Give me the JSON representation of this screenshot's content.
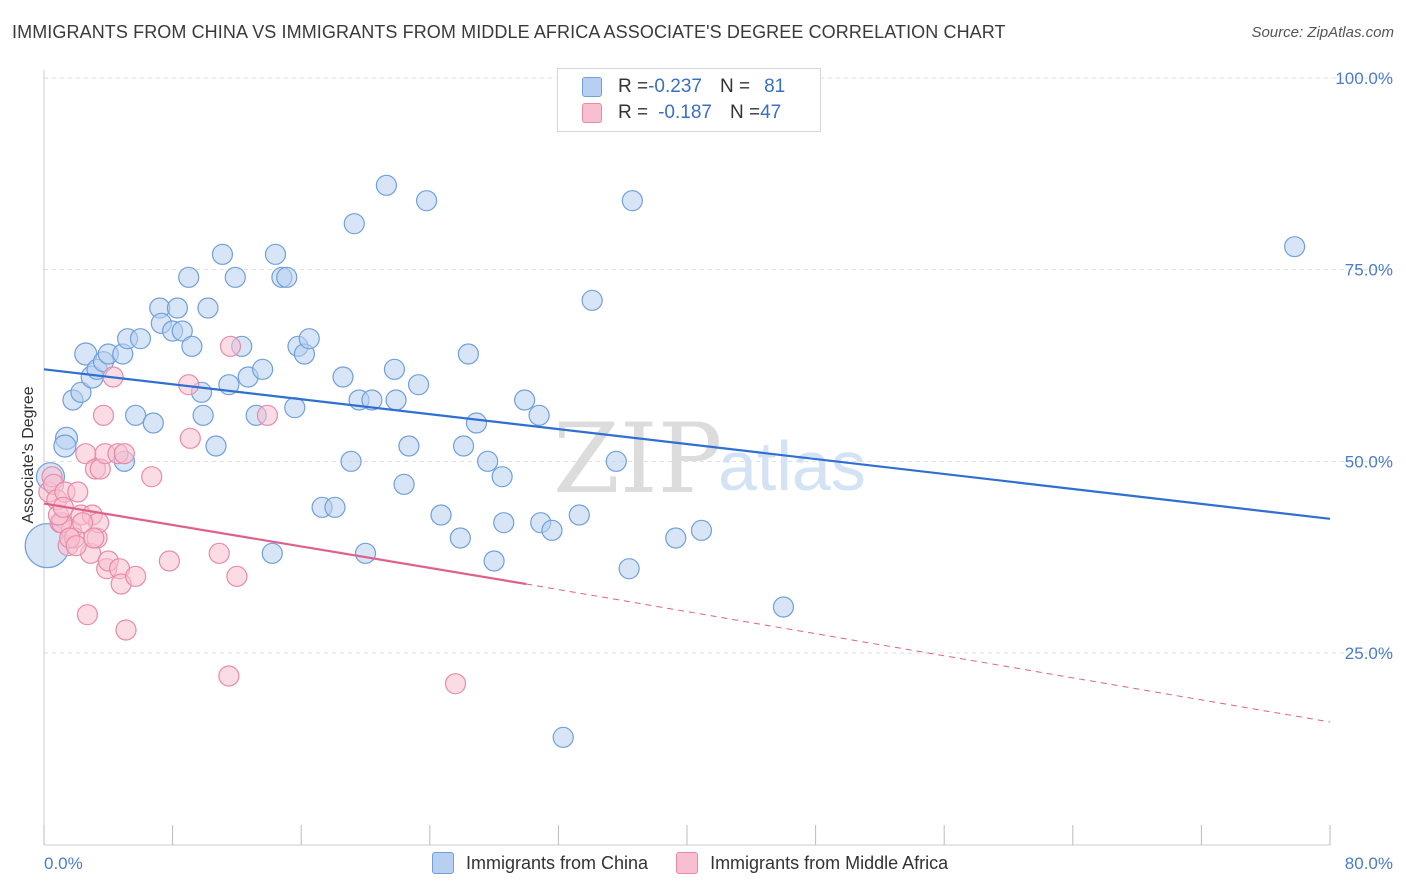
{
  "title": "IMMIGRANTS FROM CHINA VS IMMIGRANTS FROM MIDDLE AFRICA ASSOCIATE'S DEGREE CORRELATION CHART",
  "source": "Source: ZipAtlas.com",
  "watermark": {
    "zip": "ZIP",
    "atlas": "atlas"
  },
  "legend": {
    "rows": [
      {
        "r_label": "R = ",
        "r_value": "-0.237",
        "n_label": "N = ",
        "n_value": "81"
      },
      {
        "r_label": "R = ",
        "r_value": "-0.187",
        "n_label": "N = ",
        "n_value": "47"
      }
    ]
  },
  "bottom_legend": [
    "Immigrants from China",
    "Immigrants from Middle Africa"
  ],
  "colors": {
    "china_fill": "#b7cff1",
    "china_stroke": "#6f9fdc",
    "china_line": "#2f6fd1",
    "africa_fill": "#f7bfd0",
    "africa_stroke": "#e88aa8",
    "africa_line": "#e0608c",
    "grid": "#dddddd",
    "tick_label": "#4a7cc9"
  },
  "chart_data": {
    "type": "scatter",
    "xlabel": "",
    "ylabel": "Associate's Degree",
    "xlim": [
      0,
      80
    ],
    "ylim": [
      0,
      105
    ],
    "x_tick_labels": [
      "0.0%",
      "80.0%"
    ],
    "y_ticks": [
      25,
      50,
      75,
      100
    ],
    "y_tick_labels": [
      "25.0%",
      "50.0%",
      "75.0%",
      "100.0%"
    ],
    "grid": true,
    "legend_position": "top-center",
    "series": [
      {
        "name": "Immigrants from China",
        "points": [
          [
            0.2,
            39,
            22
          ],
          [
            0.4,
            48,
            14
          ],
          [
            1.4,
            53,
            11
          ],
          [
            1.3,
            52,
            11
          ],
          [
            1.8,
            58,
            10
          ],
          [
            2.3,
            59,
            10
          ],
          [
            2.6,
            64,
            11
          ],
          [
            3.0,
            61,
            11
          ],
          [
            3.3,
            62,
            10
          ],
          [
            3.7,
            63,
            10
          ],
          [
            4.0,
            64,
            10
          ],
          [
            4.9,
            64,
            10
          ],
          [
            5.2,
            66,
            10
          ],
          [
            6.0,
            66,
            10
          ],
          [
            5.7,
            56,
            10
          ],
          [
            6.8,
            55,
            10
          ],
          [
            7.2,
            70,
            10
          ],
          [
            7.3,
            68,
            10
          ],
          [
            8.0,
            67,
            10
          ],
          [
            8.3,
            70,
            10
          ],
          [
            8.6,
            67,
            10
          ],
          [
            9.0,
            74,
            10
          ],
          [
            9.2,
            65,
            10
          ],
          [
            9.8,
            59,
            10
          ],
          [
            9.9,
            56,
            10
          ],
          [
            10.2,
            70,
            10
          ],
          [
            10.7,
            52,
            10
          ],
          [
            11.1,
            77,
            10
          ],
          [
            11.5,
            60,
            10
          ],
          [
            11.9,
            74,
            10
          ],
          [
            12.3,
            65,
            10
          ],
          [
            12.7,
            61,
            10
          ],
          [
            13.2,
            56,
            10
          ],
          [
            13.6,
            62,
            10
          ],
          [
            14.2,
            38,
            10
          ],
          [
            14.4,
            77,
            10
          ],
          [
            14.8,
            74,
            10
          ],
          [
            15.1,
            74,
            10
          ],
          [
            15.6,
            57,
            10
          ],
          [
            15.8,
            65,
            10
          ],
          [
            16.2,
            64,
            10
          ],
          [
            16.5,
            66,
            10
          ],
          [
            17.3,
            44,
            10
          ],
          [
            18.1,
            44,
            10
          ],
          [
            18.6,
            61,
            10
          ],
          [
            19.1,
            50,
            10
          ],
          [
            19.3,
            81,
            10
          ],
          [
            19.6,
            58,
            10
          ],
          [
            20.0,
            38,
            10
          ],
          [
            20.4,
            58,
            10
          ],
          [
            21.3,
            86,
            10
          ],
          [
            21.8,
            62,
            10
          ],
          [
            21.9,
            58,
            10
          ],
          [
            22.4,
            47,
            10
          ],
          [
            22.7,
            52,
            10
          ],
          [
            23.3,
            60,
            10
          ],
          [
            23.8,
            84,
            10
          ],
          [
            24.7,
            43,
            10
          ],
          [
            25.9,
            40,
            10
          ],
          [
            26.1,
            52,
            10
          ],
          [
            26.4,
            64,
            10
          ],
          [
            26.9,
            55,
            10
          ],
          [
            27.6,
            50,
            10
          ],
          [
            28.0,
            37,
            10
          ],
          [
            28.5,
            48,
            10
          ],
          [
            28.6,
            42,
            10
          ],
          [
            29.9,
            58,
            10
          ],
          [
            30.8,
            56,
            10
          ],
          [
            30.9,
            42,
            10
          ],
          [
            31.6,
            41,
            10
          ],
          [
            32.3,
            14,
            10
          ],
          [
            33.3,
            43,
            10
          ],
          [
            34.1,
            71,
            10
          ],
          [
            35.6,
            50,
            10
          ],
          [
            36.4,
            36,
            10
          ],
          [
            36.6,
            84,
            10
          ],
          [
            39.3,
            40,
            10
          ],
          [
            40.9,
            41,
            10
          ],
          [
            46.0,
            31,
            10
          ],
          [
            77.8,
            78,
            10
          ],
          [
            5.0,
            50,
            10
          ]
        ],
        "trend": {
          "x": [
            0,
            80
          ],
          "y": [
            62,
            42.5
          ]
        }
      },
      {
        "name": "Immigrants from Middle Africa",
        "points": [
          [
            0.3,
            46,
            10
          ],
          [
            0.5,
            48,
            10
          ],
          [
            0.6,
            47,
            10
          ],
          [
            0.8,
            45,
            10
          ],
          [
            1.0,
            42,
            10
          ],
          [
            1.3,
            46,
            10
          ],
          [
            1.5,
            39,
            10
          ],
          [
            1.7,
            41,
            10
          ],
          [
            1.9,
            40,
            10
          ],
          [
            2.1,
            46,
            10
          ],
          [
            2.3,
            43,
            10
          ],
          [
            2.6,
            51,
            10
          ],
          [
            2.7,
            30,
            10
          ],
          [
            2.9,
            38,
            10
          ],
          [
            3.0,
            43,
            10
          ],
          [
            3.2,
            49,
            10
          ],
          [
            3.3,
            40,
            10
          ],
          [
            3.4,
            42,
            10
          ],
          [
            3.5,
            49,
            10
          ],
          [
            3.7,
            56,
            10
          ],
          [
            3.8,
            51,
            10
          ],
          [
            3.9,
            36,
            10
          ],
          [
            4.0,
            37,
            10
          ],
          [
            4.3,
            61,
            10
          ],
          [
            4.6,
            51,
            10
          ],
          [
            4.7,
            36,
            10
          ],
          [
            4.8,
            34,
            10
          ],
          [
            5.0,
            51,
            10
          ],
          [
            5.1,
            28,
            10
          ],
          [
            5.7,
            35,
            10
          ],
          [
            6.7,
            48,
            10
          ],
          [
            7.8,
            37,
            10
          ],
          [
            9.0,
            60,
            10
          ],
          [
            9.1,
            53,
            10
          ],
          [
            10.9,
            38,
            10
          ],
          [
            11.5,
            22,
            10
          ],
          [
            11.6,
            65,
            10
          ],
          [
            12.0,
            35,
            10
          ],
          [
            13.9,
            56,
            10
          ],
          [
            25.6,
            21,
            10
          ],
          [
            1.1,
            42,
            10
          ],
          [
            1.6,
            40,
            10
          ],
          [
            2.0,
            39,
            10
          ],
          [
            0.9,
            43,
            10
          ],
          [
            1.2,
            44,
            10
          ],
          [
            2.4,
            42,
            10
          ],
          [
            3.1,
            40,
            10
          ]
        ],
        "trend_solid": {
          "x": [
            0,
            30
          ],
          "y": [
            44.5,
            34
          ]
        },
        "trend_dashed": {
          "x": [
            30,
            80
          ],
          "y": [
            34,
            16
          ]
        }
      }
    ]
  }
}
